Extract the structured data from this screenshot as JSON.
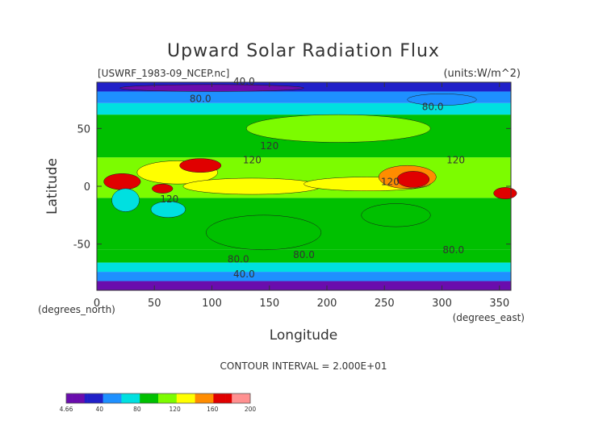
{
  "chart_data": {
    "type": "heatmap",
    "title": "Upward Solar Radiation Flux",
    "file_label": "[USWRF_1983-09_NCEP.nc]",
    "units_label": "(units:W/m^2)",
    "xlabel": "Longitude",
    "ylabel": "Latitude",
    "x_unit_label": "(degrees_east)",
    "y_unit_label": "(degrees_north)",
    "xlim": [
      0,
      360
    ],
    "ylim": [
      -90,
      90
    ],
    "x_ticks": [
      0,
      50,
      100,
      150,
      200,
      250,
      300,
      350
    ],
    "y_ticks": [
      -50,
      0,
      50
    ],
    "contour_interval_text": "CONTOUR INTERVAL = 2.000E+01",
    "contour_labels": [
      {
        "text": "40.0",
        "lon": 128,
        "lat": 88
      },
      {
        "text": "80.0",
        "lon": 90,
        "lat": 73
      },
      {
        "text": "80.0",
        "lon": 292,
        "lat": 66
      },
      {
        "text": "120",
        "lon": 150,
        "lat": 32
      },
      {
        "text": "120",
        "lon": 135,
        "lat": 20
      },
      {
        "text": "120",
        "lon": 312,
        "lat": 20
      },
      {
        "text": "120",
        "lon": 255,
        "lat": 1
      },
      {
        "text": "120",
        "lon": 63,
        "lat": -14
      },
      {
        "text": "80.0",
        "lon": 180,
        "lat": -62
      },
      {
        "text": "80.0",
        "lon": 123,
        "lat": -66
      },
      {
        "text": "80.0",
        "lon": 310,
        "lat": -58
      },
      {
        "text": "40.0",
        "lon": 128,
        "lat": -79
      }
    ],
    "colorbar": {
      "min": 4.66,
      "max": 200,
      "tick_labels": [
        "4.66",
        "40",
        "80",
        "120",
        "160",
        "200"
      ],
      "tick_values": [
        4.66,
        40,
        80,
        120,
        160,
        200
      ],
      "colors": [
        "#6a0dad",
        "#2020c8",
        "#1e90ff",
        "#00e0e0",
        "#00c000",
        "#7cfc00",
        "#ffff00",
        "#ff8c00",
        "#e00000",
        "#ff9090"
      ]
    },
    "field_regions": [
      {
        "lat": [
          -90,
          -82
        ],
        "lon": [
          0,
          360
        ],
        "value": 20
      },
      {
        "lat": [
          -82,
          -74
        ],
        "lon": [
          0,
          360
        ],
        "value": 45
      },
      {
        "lat": [
          -74,
          -66
        ],
        "lon": [
          0,
          360
        ],
        "value": 70
      },
      {
        "lat": [
          -66,
          -55
        ],
        "lon": [
          0,
          360
        ],
        "value": 90
      },
      {
        "lat": [
          -55,
          -10
        ],
        "lon": [
          0,
          360
        ],
        "value": 95
      },
      {
        "lat": [
          -10,
          25
        ],
        "lon": [
          0,
          360
        ],
        "value": 110
      },
      {
        "lat": [
          25,
          62
        ],
        "lon": [
          0,
          360
        ],
        "value": 95
      },
      {
        "lat": [
          62,
          72
        ],
        "lon": [
          0,
          360
        ],
        "value": 75
      },
      {
        "lat": [
          72,
          82
        ],
        "lon": [
          0,
          360
        ],
        "value": 60
      },
      {
        "lat": [
          82,
          90
        ],
        "lon": [
          0,
          360
        ],
        "value": 40
      }
    ],
    "features": [
      {
        "shape": "ellipse",
        "lon": 70,
        "lat": 12,
        "rlon": 35,
        "rlat": 10,
        "value": 130
      },
      {
        "shape": "ellipse",
        "lon": 90,
        "lat": 18,
        "rlon": 18,
        "rlat": 6,
        "value": 165
      },
      {
        "shape": "ellipse",
        "lon": 135,
        "lat": 0,
        "rlon": 60,
        "rlat": 7,
        "value": 132
      },
      {
        "shape": "ellipse",
        "lon": 235,
        "lat": 2,
        "rlon": 55,
        "rlat": 6,
        "value": 128
      },
      {
        "shape": "ellipse",
        "lon": 270,
        "lat": 8,
        "rlon": 25,
        "rlat": 10,
        "value": 145
      },
      {
        "shape": "ellipse",
        "lon": 275,
        "lat": 6,
        "rlon": 14,
        "rlat": 7,
        "value": 170
      },
      {
        "shape": "ellipse",
        "lon": 22,
        "lat": 4,
        "rlon": 16,
        "rlat": 7,
        "value": 165
      },
      {
        "shape": "ellipse",
        "lon": 355,
        "lat": -6,
        "rlon": 10,
        "rlat": 5,
        "value": 170
      },
      {
        "shape": "ellipse",
        "lon": 57,
        "lat": -2,
        "rlon": 9,
        "rlat": 4,
        "value": 175
      },
      {
        "shape": "ellipse",
        "lon": 25,
        "lat": -12,
        "rlon": 12,
        "rlat": 10,
        "value": 65
      },
      {
        "shape": "ellipse",
        "lon": 62,
        "lat": -20,
        "rlon": 15,
        "rlat": 7,
        "value": 82
      },
      {
        "shape": "ellipse",
        "lon": 145,
        "lat": -40,
        "rlon": 50,
        "rlat": 15,
        "value": 88
      },
      {
        "shape": "ellipse",
        "lon": 260,
        "lat": -25,
        "rlon": 30,
        "rlat": 10,
        "value": 100
      },
      {
        "shape": "ellipse",
        "lon": 210,
        "lat": 50,
        "rlon": 80,
        "rlat": 12,
        "value": 105
      },
      {
        "shape": "ellipse",
        "lon": 300,
        "lat": 75,
        "rlon": 30,
        "rlat": 5,
        "value": 55
      },
      {
        "shape": "ellipse",
        "lon": 100,
        "lat": 85,
        "rlon": 80,
        "rlat": 3,
        "value": 15
      }
    ]
  }
}
